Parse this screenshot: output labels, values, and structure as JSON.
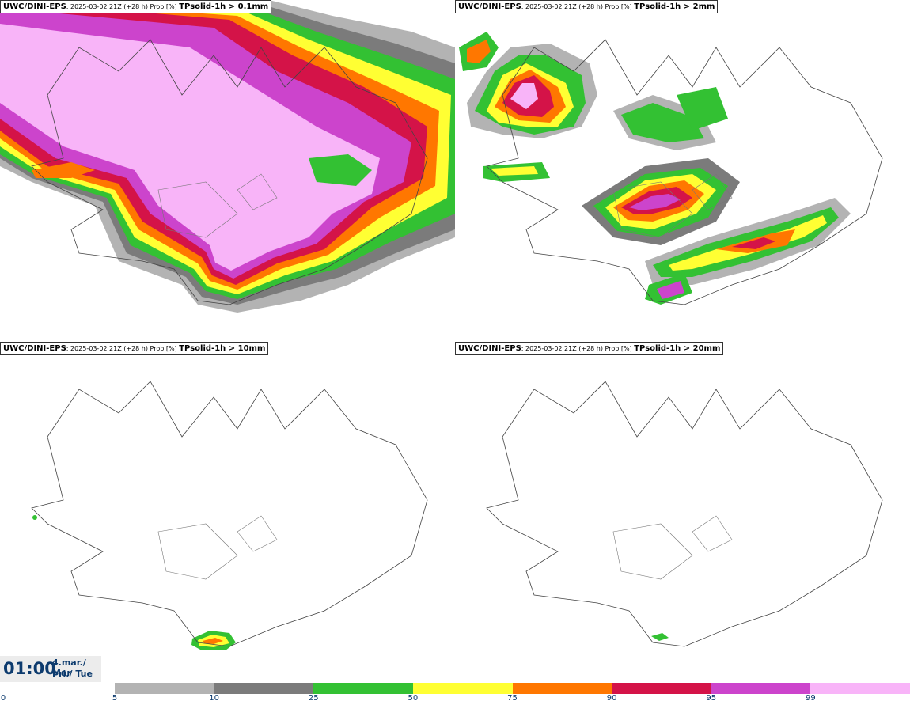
{
  "panels": [
    {
      "model": "UWC/DINI-EPS",
      "subtitle": ": 2025-03-02 21Z (+28 h) Prob [%] ",
      "variable": "TPsolid-1h > 0.1mm",
      "coverage": "very-high"
    },
    {
      "model": "UWC/DINI-EPS",
      "subtitle": ": 2025-03-02 21Z (+28 h) Prob [%] ",
      "variable": "TPsolid-1h > 2mm",
      "coverage": "moderate"
    },
    {
      "model": "UWC/DINI-EPS",
      "subtitle": ": 2025-03-02 21Z (+28 h) Prob [%] ",
      "variable": "TPsolid-1h > 10mm",
      "coverage": "small"
    },
    {
      "model": "UWC/DINI-EPS",
      "subtitle": ": 2025-03-02 21Z (+28 h) Prob [%] ",
      "variable": "TPsolid-1h > 20mm",
      "coverage": "trace"
    }
  ],
  "time": {
    "clock": "01:00",
    "date_line1": "4.mar./ Mar",
    "date_line2": "Þri./ Tue"
  },
  "legend": {
    "ticks": [
      "0",
      "5",
      "10",
      "25",
      "50",
      "75",
      "90",
      "95",
      "99"
    ],
    "bands": [
      {
        "from": "5",
        "to": "10",
        "color": "#b3b3b3"
      },
      {
        "from": "10",
        "to": "25",
        "color": "#7b7b7b"
      },
      {
        "from": "25",
        "to": "50",
        "color": "#33c133"
      },
      {
        "from": "50",
        "to": "75",
        "color": "#ffff33"
      },
      {
        "from": "75",
        "to": "90",
        "color": "#ff7700"
      },
      {
        "from": "90",
        "to": "95",
        "color": "#d41348"
      },
      {
        "from": "95",
        "to": "99",
        "color": "#cc44cc"
      },
      {
        "from": "99",
        "to": "",
        "color": "#f8b4f8"
      }
    ]
  }
}
